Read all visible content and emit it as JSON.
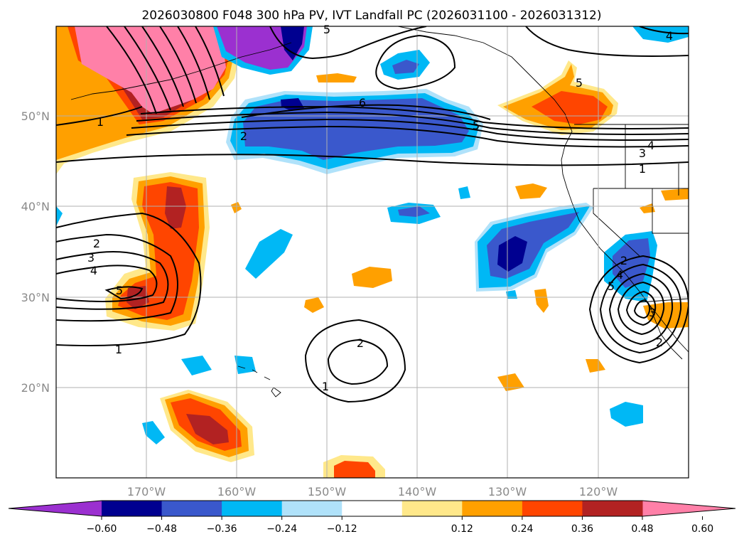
{
  "title": "2026030800 F048 300 hPa PV, IVT Landfall PC (2026031100 - 2026031312)",
  "lon_labels": [
    "170°W",
    "160°W",
    "150°W",
    "140°W",
    "130°W",
    "120°W"
  ],
  "lat_labels": [
    "50°N",
    "40°N",
    "30°N",
    "20°N"
  ],
  "colorbar": {
    "ticks": [
      "−0.60",
      "−0.48",
      "−0.36",
      "−0.24",
      "−0.12",
      "0.12",
      "0.24",
      "0.36",
      "0.48",
      "0.60"
    ],
    "colors": [
      "#9b30d0",
      "#000090",
      "#3a58cc",
      "#00b8f5",
      "#b0e2fa",
      "#ffffff",
      "#ffe88a",
      "#ffa000",
      "#ff4500",
      "#b22222",
      "#ff80a8"
    ]
  },
  "contour_labels": [
    "1",
    "2",
    "3",
    "4",
    "5",
    "6",
    "1",
    "2",
    "3",
    "4",
    "5",
    "1",
    "2",
    "1",
    "2",
    "3",
    "4",
    "5",
    "2",
    "4",
    "5",
    "5"
  ]
}
